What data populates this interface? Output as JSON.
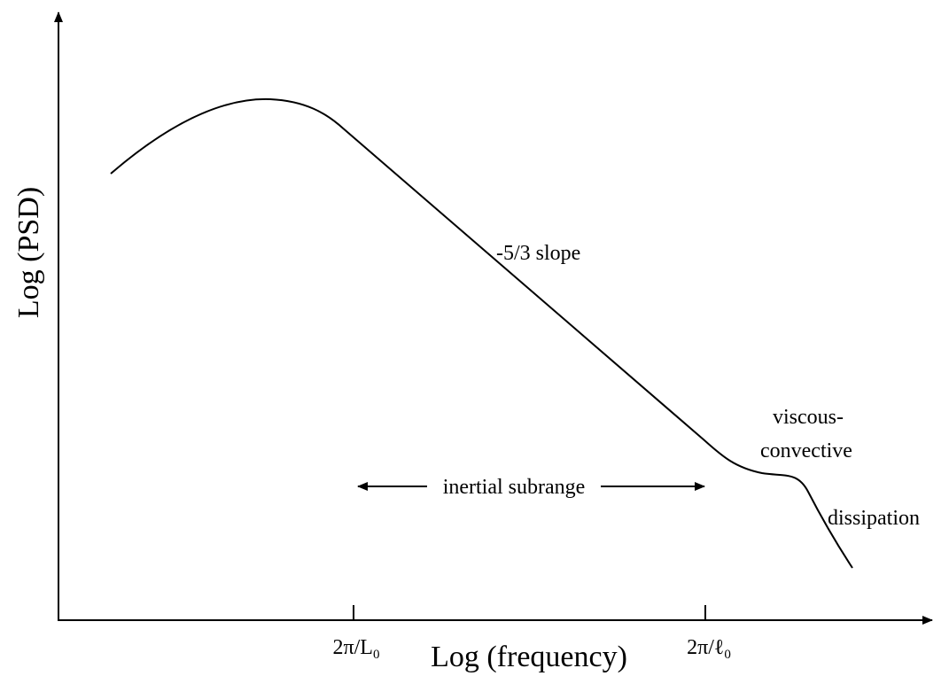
{
  "y_axis_label": "Log (PSD)",
  "x_axis_label": "Log (frequency)",
  "ticks": [
    {
      "label": "2π/L",
      "subscript": "0"
    },
    {
      "label": "2π/ℓ",
      "subscript": "0"
    }
  ],
  "annotations": {
    "slope": "-5/3 slope",
    "viscous_1": "viscous-",
    "viscous_2": "convective",
    "dissipation": "dissipation",
    "range": "inertial subrange"
  }
}
